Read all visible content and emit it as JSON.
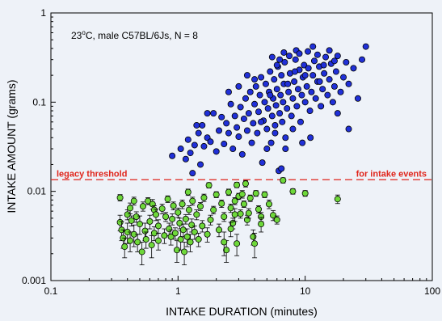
{
  "chart_data": {
    "type": "scatter",
    "xlabel": "INTAKE DURATION (minutes)",
    "ylabel": "INTAKE AMOUNT (grams)",
    "xscale": "log",
    "yscale": "log",
    "xlim": [
      0.1,
      100
    ],
    "ylim": [
      0.001,
      1
    ],
    "x_ticks": [
      {
        "value": 0.1,
        "label": "0.1"
      },
      {
        "value": 1,
        "label": "1"
      },
      {
        "value": 10,
        "label": "10"
      },
      {
        "value": 100,
        "label": "100"
      }
    ],
    "y_ticks": [
      {
        "value": 0.001,
        "label": "0.001"
      },
      {
        "value": 0.01,
        "label": "0.01"
      },
      {
        "value": 0.1,
        "label": "0.1"
      },
      {
        "value": 1,
        "label": "1"
      }
    ],
    "annotation": {
      "base": "23",
      "sup": "o",
      "rest": "C, male C57BL/6Js, N = 8"
    },
    "threshold": {
      "value": 0.0135,
      "color": "#e0251b",
      "label_left": "legacy threshold",
      "label_right": "for intake events"
    },
    "grid": false,
    "series": [
      {
        "color": "#2030d8",
        "error_bars": false,
        "points": [
          [
            0.9,
            0.025
          ],
          [
            1.05,
            0.03
          ],
          [
            1.15,
            0.023
          ],
          [
            1.2,
            0.038
          ],
          [
            1.25,
            0.027
          ],
          [
            1.3,
            0.016
          ],
          [
            1.35,
            0.033
          ],
          [
            1.45,
            0.045
          ],
          [
            1.5,
            0.02
          ],
          [
            1.55,
            0.055
          ],
          [
            1.6,
            0.032
          ],
          [
            1.7,
            0.04
          ],
          [
            1.8,
            0.036
          ],
          [
            1.9,
            0.075
          ],
          [
            2.0,
            0.028
          ],
          [
            2.1,
            0.048
          ],
          [
            2.2,
            0.068
          ],
          [
            2.3,
            0.034
          ],
          [
            2.4,
            0.058
          ],
          [
            2.5,
            0.045
          ],
          [
            2.6,
            0.095
          ],
          [
            2.7,
            0.03
          ],
          [
            2.8,
            0.07
          ],
          [
            2.9,
            0.052
          ],
          [
            3.0,
            0.041
          ],
          [
            3.1,
            0.088
          ],
          [
            3.2,
            0.026
          ],
          [
            3.3,
            0.065
          ],
          [
            3.4,
            0.11
          ],
          [
            3.5,
            0.048
          ],
          [
            3.6,
            0.075
          ],
          [
            3.7,
            0.13
          ],
          [
            3.8,
            0.035
          ],
          [
            3.9,
            0.058
          ],
          [
            4.0,
            0.095
          ],
          [
            4.1,
            0.15
          ],
          [
            4.2,
            0.045
          ],
          [
            4.3,
            0.078
          ],
          [
            4.4,
            0.12
          ],
          [
            4.5,
            0.19
          ],
          [
            4.6,
            0.021
          ],
          [
            4.7,
            0.062
          ],
          [
            4.8,
            0.1
          ],
          [
            4.9,
            0.16
          ],
          [
            5.0,
            0.05
          ],
          [
            5.1,
            0.085
          ],
          [
            5.2,
            0.13
          ],
          [
            5.3,
            0.22
          ],
          [
            5.4,
            0.035
          ],
          [
            5.5,
            0.07
          ],
          [
            5.6,
            0.11
          ],
          [
            5.7,
            0.18
          ],
          [
            5.8,
            0.055
          ],
          [
            5.9,
            0.092
          ],
          [
            6.0,
            0.14
          ],
          [
            6.1,
            0.25
          ],
          [
            6.2,
            0.017
          ],
          [
            6.3,
            0.075
          ],
          [
            6.4,
            0.12
          ],
          [
            6.5,
            0.2
          ],
          [
            6.6,
            0.06
          ],
          [
            6.7,
            0.1
          ],
          [
            6.8,
            0.16
          ],
          [
            6.9,
            0.28
          ],
          [
            7.0,
            0.04
          ],
          [
            7.2,
            0.085
          ],
          [
            7.4,
            0.13
          ],
          [
            7.6,
            0.21
          ],
          [
            7.8,
            0.07
          ],
          [
            8.0,
            0.11
          ],
          [
            8.2,
            0.17
          ],
          [
            8.4,
            0.3
          ],
          [
            8.6,
            0.09
          ],
          [
            8.8,
            0.14
          ],
          [
            9.0,
            0.23
          ],
          [
            9.2,
            0.06
          ],
          [
            9.4,
            0.12
          ],
          [
            9.6,
            0.19
          ],
          [
            9.8,
            0.26
          ],
          [
            10.0,
            0.1
          ],
          [
            10.3,
            0.15
          ],
          [
            10.6,
            0.24
          ],
          [
            10.9,
            0.08
          ],
          [
            11.2,
            0.13
          ],
          [
            11.5,
            0.2
          ],
          [
            11.8,
            0.29
          ],
          [
            12.1,
            0.11
          ],
          [
            12.5,
            0.17
          ],
          [
            12.9,
            0.25
          ],
          [
            13.3,
            0.09
          ],
          [
            13.7,
            0.14
          ],
          [
            14.1,
            0.21
          ],
          [
            14.5,
            0.32
          ],
          [
            15.0,
            0.12
          ],
          [
            15.5,
            0.18
          ],
          [
            16.0,
            0.27
          ],
          [
            16.5,
            0.1
          ],
          [
            17.0,
            0.15
          ],
          [
            17.5,
            0.22
          ],
          [
            18.0,
            0.33
          ],
          [
            19.0,
            0.13
          ],
          [
            20.0,
            0.19
          ],
          [
            21.0,
            0.28
          ],
          [
            22.0,
            0.16
          ],
          [
            24.0,
            0.24
          ],
          [
            26.0,
            0.11
          ],
          [
            28.0,
            0.3
          ],
          [
            30.0,
            0.42
          ],
          [
            5.5,
            0.32
          ],
          [
            6.0,
            0.26
          ],
          [
            6.8,
            0.36
          ],
          [
            7.5,
            0.33
          ],
          [
            8.5,
            0.38
          ],
          [
            9.0,
            0.35
          ],
          [
            10.5,
            0.37
          ],
          [
            11.5,
            0.42
          ],
          [
            12.5,
            0.34
          ],
          [
            14.0,
            0.26
          ],
          [
            15.5,
            0.38
          ],
          [
            17.0,
            0.29
          ],
          [
            4.5,
            0.06
          ],
          [
            5.0,
            0.03
          ],
          [
            5.8,
            0.045
          ],
          [
            6.5,
            0.018
          ],
          [
            7.0,
            0.03
          ],
          [
            8.0,
            0.05
          ],
          [
            9.5,
            0.035
          ],
          [
            11.0,
            0.04
          ],
          [
            18.0,
            0.075
          ],
          [
            22.0,
            0.05
          ],
          [
            3.5,
            0.2
          ],
          [
            4.0,
            0.18
          ],
          [
            3.0,
            0.15
          ],
          [
            2.5,
            0.13
          ],
          [
            1.7,
            0.075
          ],
          [
            1.4,
            0.055
          ],
          [
            10.0,
            0.2
          ],
          [
            13.0,
            0.17
          ],
          [
            7.3,
            0.16
          ],
          [
            8.3,
            0.22
          ],
          [
            5.3,
            0.12
          ],
          [
            6.3,
            0.3
          ]
        ]
      },
      {
        "color": "#6ed83a",
        "error_bars": true,
        "points": [
          [
            0.35,
            0.0085,
            0.0007
          ],
          [
            0.35,
            0.0045,
            0.0009
          ],
          [
            0.36,
            0.0037,
            0.0009
          ],
          [
            0.37,
            0.003,
            0.0007
          ],
          [
            0.38,
            0.0024,
            0.0006
          ],
          [
            0.4,
            0.0055,
            0.0007
          ],
          [
            0.4,
            0.0035,
            0.0009
          ],
          [
            0.42,
            0.0065,
            0.0009
          ],
          [
            0.42,
            0.0028,
            0.0007
          ],
          [
            0.43,
            0.0047,
            0.0006
          ],
          [
            0.45,
            0.0078,
            0.0008
          ],
          [
            0.45,
            0.0033,
            0.0009
          ],
          [
            0.47,
            0.0052,
            0.0007
          ],
          [
            0.48,
            0.0027,
            0.0006
          ],
          [
            0.5,
            0.0043,
            0.001
          ],
          [
            0.52,
            0.0021,
            0.0006
          ],
          [
            0.53,
            0.0068,
            0.0008
          ],
          [
            0.55,
            0.0036,
            0.0008
          ],
          [
            0.56,
            0.0029,
            0.0006
          ],
          [
            0.58,
            0.0078,
            0.0007
          ],
          [
            0.6,
            0.0046,
            0.0008
          ],
          [
            0.62,
            0.0025,
            0.0007
          ],
          [
            0.63,
            0.0072,
            0.0009
          ],
          [
            0.65,
            0.0062,
            0.0007
          ],
          [
            0.65,
            0.0034,
            0.0006
          ],
          [
            0.67,
            0.0055,
            0.0008
          ],
          [
            0.7,
            0.0041,
            0.0007
          ],
          [
            0.7,
            0.0028,
            0.0006
          ],
          [
            0.75,
            0.0064,
            0.0008
          ],
          [
            0.78,
            0.0032,
            0.0006
          ],
          [
            0.8,
            0.0052,
            0.0006
          ],
          [
            0.83,
            0.0082,
            0.0007
          ],
          [
            0.85,
            0.0038,
            0.0006
          ],
          [
            0.88,
            0.0031,
            0.0006
          ],
          [
            0.9,
            0.0049,
            0.0007
          ],
          [
            0.92,
            0.0069,
            0.0007
          ],
          [
            0.95,
            0.0034,
            0.0005
          ],
          [
            0.98,
            0.0022,
            0.0006
          ],
          [
            1.0,
            0.0058,
            0.0007
          ],
          [
            1.03,
            0.0044,
            0.0006
          ],
          [
            1.05,
            0.0029,
            0.0007
          ],
          [
            1.08,
            0.0072,
            0.0008
          ],
          [
            1.1,
            0.0037,
            0.0006
          ],
          [
            1.12,
            0.0021,
            0.0006
          ],
          [
            1.15,
            0.0049,
            0.0006
          ],
          [
            1.18,
            0.0031,
            0.0007
          ],
          [
            1.2,
            0.0098,
            0.0008
          ],
          [
            1.22,
            0.0062,
            0.0007
          ],
          [
            1.25,
            0.0027,
            0.0006
          ],
          [
            1.28,
            0.0042,
            0.0007
          ],
          [
            1.3,
            0.0078,
            0.0008
          ],
          [
            1.35,
            0.0035,
            0.0006
          ],
          [
            1.4,
            0.0055,
            0.0007
          ],
          [
            1.45,
            0.0029,
            0.0005
          ],
          [
            1.5,
            0.0068,
            0.0007
          ],
          [
            1.55,
            0.0041,
            0.0006
          ],
          [
            1.6,
            0.0085,
            0.0008
          ],
          [
            1.7,
            0.0033,
            0.0006
          ],
          [
            1.75,
            0.0117,
            0.0008
          ],
          [
            1.8,
            0.0048,
            0.0006
          ],
          [
            1.9,
            0.0062,
            0.0006
          ],
          [
            2.0,
            0.0092,
            0.0007
          ],
          [
            2.1,
            0.0037,
            0.0006
          ],
          [
            2.2,
            0.0073,
            0.0007
          ],
          [
            2.3,
            0.0052,
            0.0006
          ],
          [
            2.4,
            0.0022,
            0.0006
          ],
          [
            2.5,
            0.0098,
            0.0008
          ],
          [
            2.6,
            0.0065,
            0.0007
          ],
          [
            2.7,
            0.0044,
            0.0006
          ],
          [
            2.8,
            0.0078,
            0.0007
          ],
          [
            2.9,
            0.0026,
            0.0007
          ],
          [
            3.0,
            0.0088,
            0.0007
          ],
          [
            3.1,
            0.0056,
            0.0006
          ],
          [
            3.3,
            0.0072,
            0.0006
          ],
          [
            3.5,
            0.0048,
            0.0006
          ],
          [
            3.7,
            0.0084,
            0.0007
          ],
          [
            3.9,
            0.0031,
            0.0006
          ],
          [
            4.1,
            0.0095,
            0.0007
          ],
          [
            4.3,
            0.0063,
            0.0006
          ],
          [
            4.5,
            0.0052,
            0.0006
          ],
          [
            4.8,
            0.0092,
            0.0007
          ],
          [
            5.2,
            0.0072,
            0.0008
          ],
          [
            5.6,
            0.0054,
            0.0007
          ],
          [
            6.0,
            0.0048,
            0.0005
          ],
          [
            2.3,
            0.0027,
            0.0008
          ],
          [
            2.6,
            0.0038,
            0.0007
          ],
          [
            3.6,
            0.0057,
            0.0007
          ],
          [
            4.0,
            0.0026,
            0.0008
          ],
          [
            2.8,
            0.0055,
            0.0009
          ],
          [
            2.9,
            0.0118,
            0.0008
          ],
          [
            3.2,
            0.0093,
            0.0009
          ],
          [
            3.4,
            0.0122,
            0.001
          ],
          [
            4.5,
            0.0043,
            0.0008
          ],
          [
            6.7,
            0.0133,
            0.0009
          ],
          [
            8.0,
            0.01,
            0.0007
          ],
          [
            10.0,
            0.0095,
            0.0007
          ],
          [
            18.0,
            0.0082,
            0.0009
          ]
        ]
      }
    ]
  }
}
